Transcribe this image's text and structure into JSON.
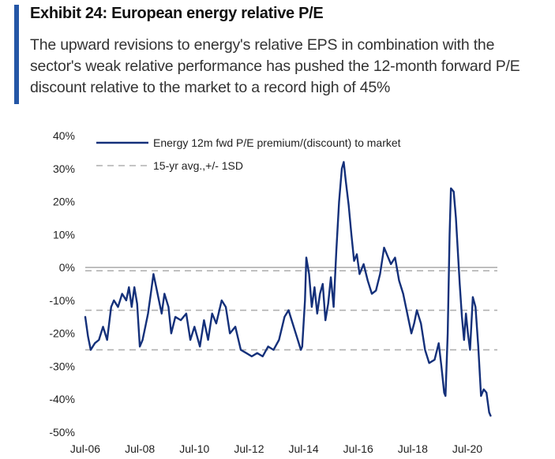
{
  "header": {
    "title": "Exhibit 24: European energy relative P/E",
    "subtitle": "The upward revisions to energy's relative EPS in combination with the sector's weak relative performance has pushed the 12-month forward P/E discount relative to the market to a record high of 45%"
  },
  "colors": {
    "accent": "#2456a6",
    "series": "#14307a",
    "reference": "#b0b0b0",
    "axis": "#999999"
  },
  "chart_data": {
    "type": "line",
    "title": "Exhibit 24: European energy relative P/E",
    "xlabel": "",
    "ylabel": "",
    "ylim": [
      -50,
      40
    ],
    "y_ticks": [
      "40%",
      "30%",
      "20%",
      "10%",
      "0%",
      "-10%",
      "-20%",
      "-30%",
      "-40%",
      "-50%"
    ],
    "y_tick_values": [
      40,
      30,
      20,
      10,
      0,
      -10,
      -20,
      -30,
      -40,
      -50
    ],
    "x_ticks": [
      "Jul-06",
      "Jul-08",
      "Jul-10",
      "Jul-12",
      "Jul-14",
      "Jul-16",
      "Jul-18",
      "Jul-20"
    ],
    "x_tick_values": [
      2006.5,
      2008.5,
      2010.5,
      2012.5,
      2014.5,
      2016.5,
      2018.5,
      2020.5
    ],
    "xlim": [
      2006.5,
      2021.6
    ],
    "legend_position": "top",
    "grid": false,
    "series": [
      {
        "name": "Energy 12m fwd P/E premium/(discount)  to market",
        "style": "solid",
        "points": [
          [
            2006.5,
            -15
          ],
          [
            2006.6,
            -21
          ],
          [
            2006.7,
            -25
          ],
          [
            2006.85,
            -23
          ],
          [
            2007.0,
            -22
          ],
          [
            2007.15,
            -18
          ],
          [
            2007.3,
            -22
          ],
          [
            2007.45,
            -12
          ],
          [
            2007.55,
            -10
          ],
          [
            2007.7,
            -12
          ],
          [
            2007.85,
            -8
          ],
          [
            2008.0,
            -10
          ],
          [
            2008.1,
            -6
          ],
          [
            2008.2,
            -12
          ],
          [
            2008.3,
            -6
          ],
          [
            2008.4,
            -11
          ],
          [
            2008.5,
            -24
          ],
          [
            2008.6,
            -22
          ],
          [
            2008.7,
            -18
          ],
          [
            2008.8,
            -14
          ],
          [
            2008.9,
            -8
          ],
          [
            2009.0,
            -2
          ],
          [
            2009.1,
            -6
          ],
          [
            2009.2,
            -10
          ],
          [
            2009.3,
            -14
          ],
          [
            2009.4,
            -8
          ],
          [
            2009.55,
            -12
          ],
          [
            2009.65,
            -20
          ],
          [
            2009.8,
            -15
          ],
          [
            2010.0,
            -16
          ],
          [
            2010.2,
            -14
          ],
          [
            2010.35,
            -22
          ],
          [
            2010.5,
            -18
          ],
          [
            2010.7,
            -24
          ],
          [
            2010.85,
            -16
          ],
          [
            2011.0,
            -22
          ],
          [
            2011.15,
            -14
          ],
          [
            2011.3,
            -17
          ],
          [
            2011.5,
            -10
          ],
          [
            2011.65,
            -12
          ],
          [
            2011.8,
            -20
          ],
          [
            2012.0,
            -18
          ],
          [
            2012.2,
            -25
          ],
          [
            2012.4,
            -26
          ],
          [
            2012.6,
            -27
          ],
          [
            2012.8,
            -26
          ],
          [
            2013.0,
            -27
          ],
          [
            2013.2,
            -24
          ],
          [
            2013.4,
            -25
          ],
          [
            2013.6,
            -22
          ],
          [
            2013.8,
            -15
          ],
          [
            2013.95,
            -13
          ],
          [
            2014.1,
            -17
          ],
          [
            2014.25,
            -21
          ],
          [
            2014.4,
            -25
          ],
          [
            2014.45,
            -24
          ],
          [
            2014.55,
            -10
          ],
          [
            2014.6,
            3
          ],
          [
            2014.7,
            -2
          ],
          [
            2014.8,
            -12
          ],
          [
            2014.9,
            -6
          ],
          [
            2015.0,
            -14
          ],
          [
            2015.1,
            -8
          ],
          [
            2015.2,
            -5
          ],
          [
            2015.3,
            -16
          ],
          [
            2015.4,
            -11
          ],
          [
            2015.5,
            -3
          ],
          [
            2015.6,
            -12
          ],
          [
            2015.7,
            5
          ],
          [
            2015.8,
            20
          ],
          [
            2015.9,
            30
          ],
          [
            2015.97,
            32
          ],
          [
            2016.05,
            26
          ],
          [
            2016.15,
            19
          ],
          [
            2016.25,
            10
          ],
          [
            2016.35,
            2
          ],
          [
            2016.45,
            4
          ],
          [
            2016.55,
            -2
          ],
          [
            2016.7,
            1
          ],
          [
            2016.85,
            -4
          ],
          [
            2017.0,
            -8
          ],
          [
            2017.15,
            -7
          ],
          [
            2017.3,
            -2
          ],
          [
            2017.45,
            6
          ],
          [
            2017.55,
            4
          ],
          [
            2017.7,
            1
          ],
          [
            2017.85,
            3
          ],
          [
            2018.0,
            -4
          ],
          [
            2018.15,
            -8
          ],
          [
            2018.3,
            -14
          ],
          [
            2018.45,
            -20
          ],
          [
            2018.55,
            -17
          ],
          [
            2018.65,
            -13
          ],
          [
            2018.8,
            -17
          ],
          [
            2018.95,
            -25
          ],
          [
            2019.1,
            -29
          ],
          [
            2019.3,
            -28
          ],
          [
            2019.45,
            -23
          ],
          [
            2019.55,
            -30
          ],
          [
            2019.65,
            -38
          ],
          [
            2019.7,
            -39
          ],
          [
            2019.78,
            -20
          ],
          [
            2019.85,
            10
          ],
          [
            2019.9,
            24
          ],
          [
            2020.0,
            23
          ],
          [
            2020.08,
            15
          ],
          [
            2020.15,
            5
          ],
          [
            2020.22,
            -5
          ],
          [
            2020.3,
            -15
          ],
          [
            2020.38,
            -22
          ],
          [
            2020.45,
            -14
          ],
          [
            2020.52,
            -20
          ],
          [
            2020.6,
            -25
          ],
          [
            2020.7,
            -9
          ],
          [
            2020.8,
            -12
          ],
          [
            2020.9,
            -24
          ],
          [
            2021.0,
            -39
          ],
          [
            2021.1,
            -37
          ],
          [
            2021.2,
            -38
          ],
          [
            2021.3,
            -44
          ],
          [
            2021.35,
            -45
          ]
        ]
      },
      {
        "name": "15-yr avg.,+/- 1SD",
        "style": "dashed",
        "levels": [
          -1,
          -13,
          -25
        ]
      }
    ]
  }
}
